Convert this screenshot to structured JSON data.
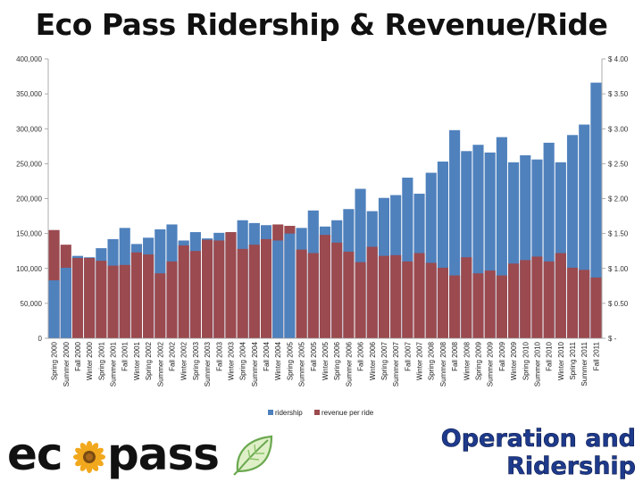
{
  "title": "Eco Pass Ridership & Revenue/Ride",
  "logo": {
    "text_left": "ec",
    "text_right": "pass"
  },
  "slogan": {
    "line1": "Operation and",
    "line2": "Ridership"
  },
  "colors": {
    "ridership": "#4f81bd",
    "revenue": "#9b4a4f",
    "slogan": "#1e3a8c"
  },
  "chart_data": {
    "type": "bar",
    "categories": [
      "Spring 2000",
      "Summer 2000",
      "Fall 2000",
      "Winter 2000",
      "Spring 2001",
      "Summer 2001",
      "Fall 2001",
      "Winter 2001",
      "Spring 2002",
      "Summer 2002",
      "Fall 2002",
      "Winter 2002",
      "Spring 2003",
      "Summer 2003",
      "Fall 2003",
      "Winter 2003",
      "Spring 2004",
      "Summer 2004",
      "Fall 2004",
      "Winter 2004",
      "Spring 2005",
      "Summer 2005",
      "Fall 2005",
      "Winter 2005",
      "Spring 2006",
      "Summer 2006",
      "Fall 2006",
      "Winter 2006",
      "Spring 2007",
      "Summer 2007",
      "Fall 2007",
      "Winter 2007",
      "Spring 2008",
      "Summer 2008",
      "Fall 2008",
      "Winter 2008",
      "Spring 2009",
      "Summer 2009",
      "Fall 2009",
      "Winter 2009",
      "Spring 2010",
      "Summer 2010",
      "Fall 2010",
      "Winter 2010",
      "Spring 2011",
      "Summer 2011",
      "Fall 2011"
    ],
    "series": [
      {
        "name": "ridership",
        "axis": "left",
        "values": [
          83000,
          101000,
          118000,
          116000,
          129000,
          142000,
          158000,
          135000,
          144000,
          156000,
          163000,
          140000,
          152000,
          143000,
          151000,
          152000,
          169000,
          165000,
          162000,
          140000,
          150000,
          158000,
          183000,
          160000,
          169000,
          185000,
          214000,
          182000,
          201000,
          205000,
          230000,
          207000,
          237000,
          253000,
          298000,
          268000,
          277000,
          266000,
          288000,
          252000,
          262000,
          256000,
          280000,
          252000,
          291000,
          306000,
          366000
        ]
      },
      {
        "name": "revenue per ride",
        "axis": "right",
        "values": [
          1.55,
          1.34,
          1.15,
          1.15,
          1.11,
          1.04,
          1.05,
          1.23,
          1.2,
          0.93,
          1.1,
          1.33,
          1.25,
          1.41,
          1.4,
          1.52,
          1.28,
          1.34,
          1.42,
          1.63,
          1.61,
          1.27,
          1.22,
          1.48,
          1.37,
          1.24,
          1.09,
          1.31,
          1.18,
          1.19,
          1.1,
          1.22,
          1.08,
          1.01,
          0.9,
          1.16,
          0.93,
          0.97,
          0.9,
          1.07,
          1.12,
          1.17,
          1.1,
          1.22,
          1.01,
          0.98,
          0.87
        ]
      }
    ],
    "left_axis": {
      "min": 0,
      "max": 400000,
      "step": 50000,
      "tick_labels": [
        "0",
        "50,000",
        "100,000",
        "150,000",
        "200,000",
        "250,000",
        "300,000",
        "350,000",
        "400,000"
      ]
    },
    "right_axis": {
      "min": 0,
      "max": 4,
      "step": 0.5,
      "tick_labels": [
        "$ -",
        "$ 0.50",
        "$ 1.00",
        "$ 1.50",
        "$ 2.00",
        "$ 2.50",
        "$ 3.00",
        "$ 3.50",
        "$ 4.00"
      ]
    },
    "legend": {
      "position": "bottom",
      "entries": [
        "ridership",
        "revenue per ride"
      ]
    },
    "grid": false
  }
}
